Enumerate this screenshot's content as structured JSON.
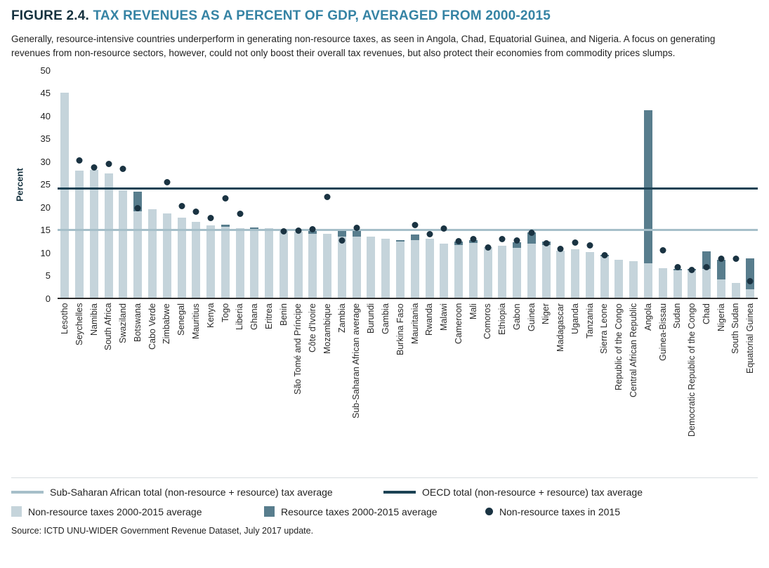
{
  "header": {
    "figure_label": "FIGURE 2.4.",
    "title": "TAX REVENUES AS A PERCENT OF GDP, AVERAGED FROM 2000-2015",
    "subtitle": "Generally, resource-intensive countries underperform in generating non-resource taxes, as seen in Angola, Chad, Equatorial Guinea, and Nigeria. A focus on generating revenues from non-resource sectors, however, could not only boost their overall tax revenues, but also protect their economies from commodity prices slumps."
  },
  "chart_data": {
    "type": "bar",
    "stacked": true,
    "ylabel": "Percent",
    "ylim": [
      0,
      50
    ],
    "yticks": [
      0,
      5,
      10,
      15,
      20,
      25,
      30,
      35,
      40,
      45,
      50
    ],
    "grid": false,
    "colors": {
      "non_resource_bar": "#C5D4DB",
      "resource_bar": "#587D8D",
      "dot_2015": "#1A3342",
      "ssa_line": "#A6BFC9",
      "oecd_line": "#1C4254"
    },
    "reference_lines": [
      {
        "id": "ssa",
        "label": "Sub-Saharan African total (non-resource + resource) tax average",
        "value": 14.8
      },
      {
        "id": "oecd",
        "label": "OECD total (non-resource + resource) tax average",
        "value": 23.8
      }
    ],
    "categories": [
      "Lesotho",
      "Seychelles",
      "Namibia",
      "South Africa",
      "Swaziland",
      "Botswana",
      "Cabo Verde",
      "Zimbabwe",
      "Senegal",
      "Mauritius",
      "Kenya",
      "Togo",
      "Liberia",
      "Ghana",
      "Eritrea",
      "Benin",
      "São Tomé and Príncipe",
      "Côte d'Ivoire",
      "Mozambique",
      "Zambia",
      "Sub-Saharan African average",
      "Burundi",
      "Gambia",
      "Burkina Faso",
      "Mauritania",
      "Rwanda",
      "Malawi",
      "Cameroon",
      "Mali",
      "Comoros",
      "Ethiopia",
      "Gabon",
      "Guinea",
      "Niger",
      "Madagascar",
      "Uganda",
      "Tanzania",
      "Sierra Leone",
      "Republic of the Congo",
      "Central African Republic",
      "Angola",
      "Guinea-Bissau",
      "Sudan",
      "Democratic Republic of the Congo",
      "Chad",
      "Nigeria",
      "South Sudan",
      "Equatorial Guinea"
    ],
    "series": [
      {
        "name": "Non-resource taxes 2000-2015 average",
        "render": "bar",
        "values": [
          44.8,
          27.7,
          27.9,
          27.2,
          23.4,
          18.8,
          19.3,
          18.4,
          17.4,
          16.5,
          15.7,
          15.4,
          15.2,
          14.8,
          15.1,
          14.7,
          14.4,
          14.0,
          13.9,
          13.3,
          13.3,
          13.3,
          12.9,
          12.2,
          12.6,
          12.8,
          11.8,
          11.4,
          11.9,
          11.0,
          11.3,
          10.8,
          11.8,
          11.4,
          10.3,
          10.5,
          10.0,
          9.0,
          8.2,
          8.0,
          7.5,
          6.4,
          5.9,
          5.9,
          6.2,
          3.9,
          3.2,
          1.8
        ]
      },
      {
        "name": "Resource taxes 2000-2015 average",
        "render": "bar",
        "values": [
          0,
          0,
          0,
          0,
          0,
          4.4,
          0,
          0,
          0,
          0,
          0,
          0.5,
          0,
          0.5,
          0,
          0,
          0,
          0.7,
          0,
          1.2,
          1.5,
          0,
          0,
          0.3,
          1.2,
          0,
          0,
          0.8,
          0.6,
          0,
          0,
          1.3,
          2.4,
          0.8,
          0,
          0,
          0,
          0.3,
          0,
          0,
          33.5,
          0,
          0.4,
          0.4,
          3.9,
          4.3,
          0,
          6.7
        ]
      },
      {
        "name": "Non-resource taxes in 2015",
        "render": "dot",
        "values": [
          null,
          30.0,
          28.4,
          29.2,
          28.2,
          19.5,
          null,
          25.3,
          20.0,
          18.8,
          17.4,
          21.7,
          18.3,
          null,
          null,
          14.5,
          14.6,
          14.9,
          22.0,
          12.5,
          15.3,
          null,
          null,
          null,
          15.8,
          13.8,
          15.1,
          12.3,
          12.7,
          11.0,
          12.7,
          12.5,
          14.2,
          11.9,
          10.6,
          12.0,
          11.4,
          9.2,
          null,
          null,
          null,
          10.3,
          6.6,
          6.0,
          6.6,
          8.4,
          8.4,
          3.5
        ]
      }
    ]
  },
  "legend": {
    "ssa_line": "Sub-Saharan African total (non-resource + resource) tax average",
    "oecd_line": "OECD total (non-resource + resource) tax average",
    "nonres_bar": "Non-resource taxes 2000-2015 average",
    "res_bar": "Resource taxes 2000-2015 average",
    "dot_2015": "Non-resource taxes in 2015"
  },
  "source": "Source: ICTD UNU-WIDER Government Revenue Dataset, July 2017 update."
}
